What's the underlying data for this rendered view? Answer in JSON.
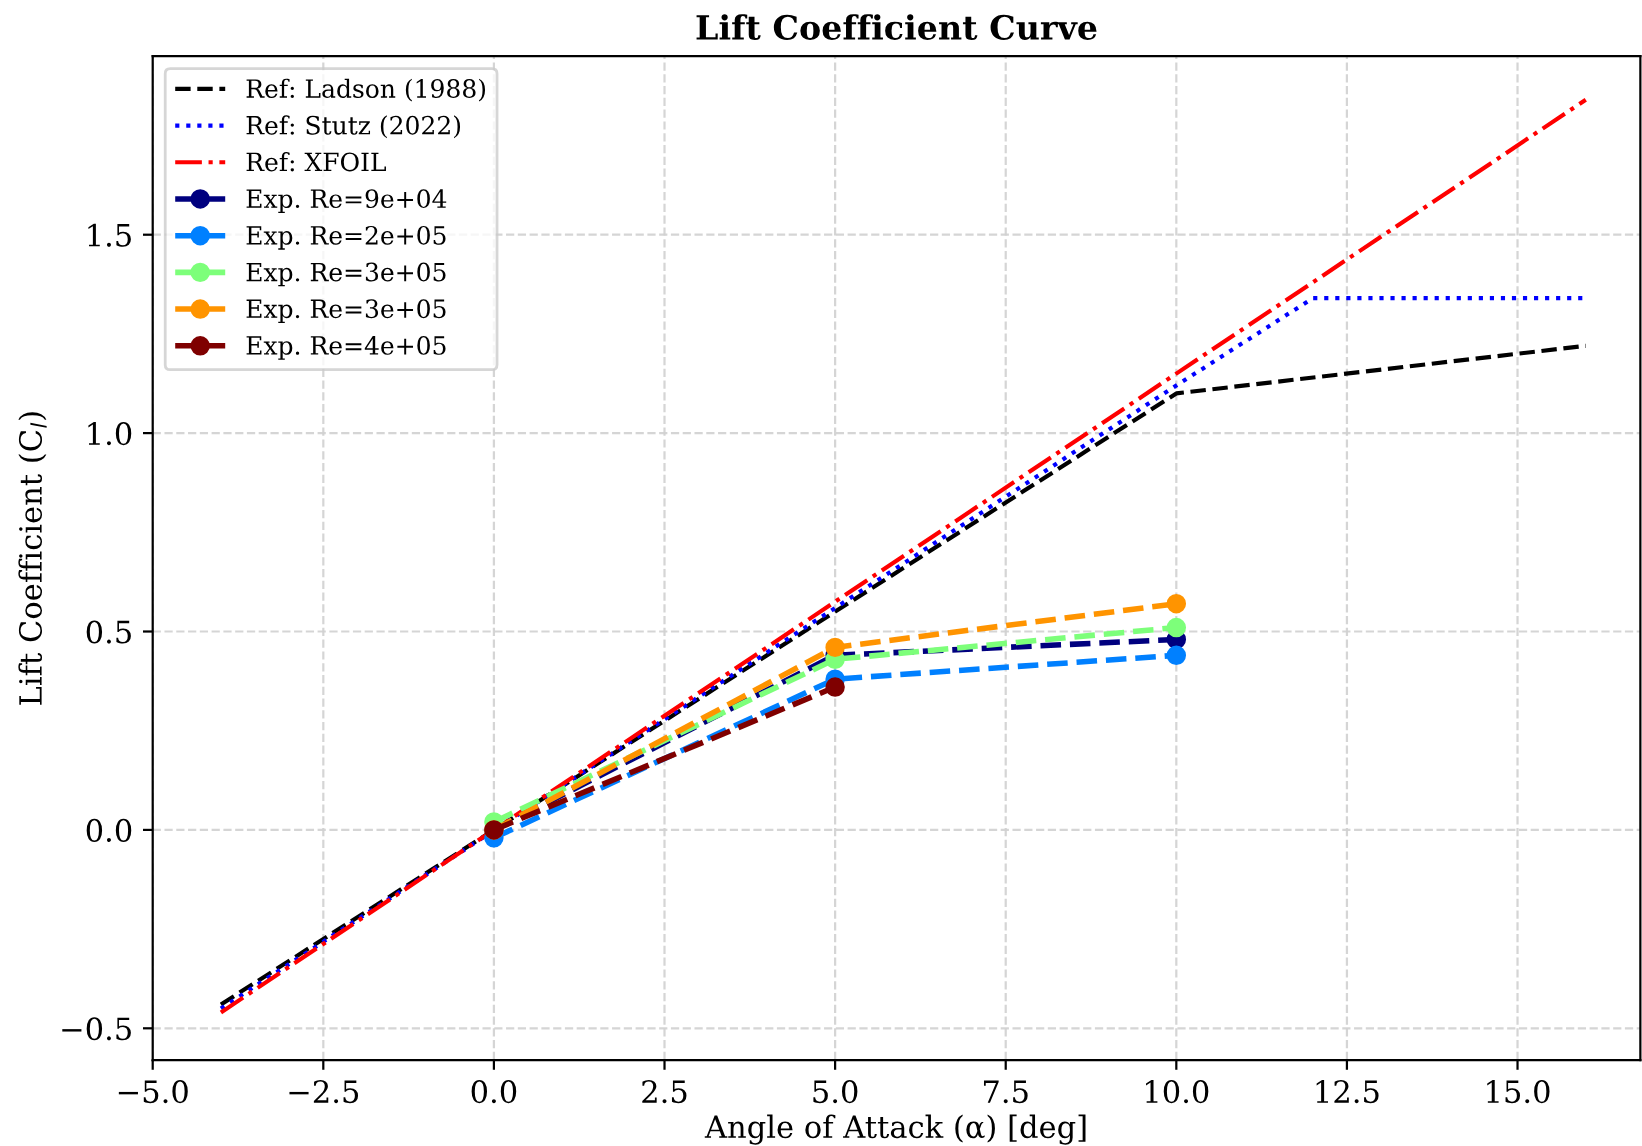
{
  "chart_data": {
    "type": "line",
    "title": "Lift Coefficient Curve",
    "xlabel": "Angle of Attack (α) [deg]",
    "ylabel": "Lift Coefficient (C$_{l}$)",
    "xlim": [
      -5,
      16.8
    ],
    "ylim": [
      -0.58,
      1.95
    ],
    "xticks": [
      {
        "value": -5,
        "label": "−5.0"
      },
      {
        "value": -2.5,
        "label": "−2.5"
      },
      {
        "value": 0,
        "label": "0.0"
      },
      {
        "value": 2.5,
        "label": "2.5"
      },
      {
        "value": 5,
        "label": "5.0"
      },
      {
        "value": 7.5,
        "label": "7.5"
      },
      {
        "value": 10,
        "label": "10.0"
      },
      {
        "value": 12.5,
        "label": "12.5"
      },
      {
        "value": 15,
        "label": "15.0"
      }
    ],
    "yticks": [
      {
        "value": -0.5,
        "label": "−0.5"
      },
      {
        "value": 0,
        "label": "0.0"
      },
      {
        "value": 0.5,
        "label": "0.5"
      },
      {
        "value": 1,
        "label": "1.0"
      },
      {
        "value": 1.5,
        "label": "1.5"
      }
    ],
    "grid": true,
    "legend": "top left",
    "series": [
      {
        "name": "Ref: Ladson (1988)",
        "color": "#000000",
        "line_style": "dashed",
        "marker": "none",
        "x": [
          -4,
          10,
          16
        ],
        "values": [
          -0.44,
          1.1,
          1.22
        ]
      },
      {
        "name": "Ref: Stutz (2022)",
        "color": "#0000ff",
        "line_style": "dotted",
        "marker": "none",
        "x": [
          -4,
          10,
          12,
          16
        ],
        "values": [
          -0.45,
          1.12,
          1.34,
          1.34
        ]
      },
      {
        "name": "Ref: XFOIL",
        "color": "#ff0000",
        "line_style": "dashdot",
        "marker": "none",
        "x": [
          -4,
          16
        ],
        "values": [
          -0.46,
          1.84
        ]
      },
      {
        "name": "Exp. Re=9e+04",
        "color": "#00007f",
        "line_style": "dashed",
        "marker": "circle",
        "x": [
          0,
          5,
          10
        ],
        "values": [
          0.0,
          0.44,
          0.48
        ]
      },
      {
        "name": "Exp. Re=2e+05",
        "color": "#0080ff",
        "line_style": "dashed",
        "marker": "circle",
        "x": [
          0,
          5,
          10
        ],
        "values": [
          -0.02,
          0.38,
          0.44
        ]
      },
      {
        "name": "Exp. Re=3e+05",
        "color": "#7dff7a",
        "line_style": "dashed",
        "marker": "circle",
        "x": [
          0,
          5,
          10
        ],
        "values": [
          0.02,
          0.43,
          0.51
        ]
      },
      {
        "name": "Exp. Re=3e+05",
        "color": "#ff9400",
        "line_style": "dashed",
        "marker": "circle",
        "x": [
          0,
          5,
          10
        ],
        "values": [
          0.0,
          0.46,
          0.57
        ]
      },
      {
        "name": "Exp. Re=4e+05",
        "color": "#7f0000",
        "line_style": "dashed",
        "marker": "circle",
        "x": [
          0,
          5
        ],
        "values": [
          0.0,
          0.36
        ]
      }
    ]
  }
}
